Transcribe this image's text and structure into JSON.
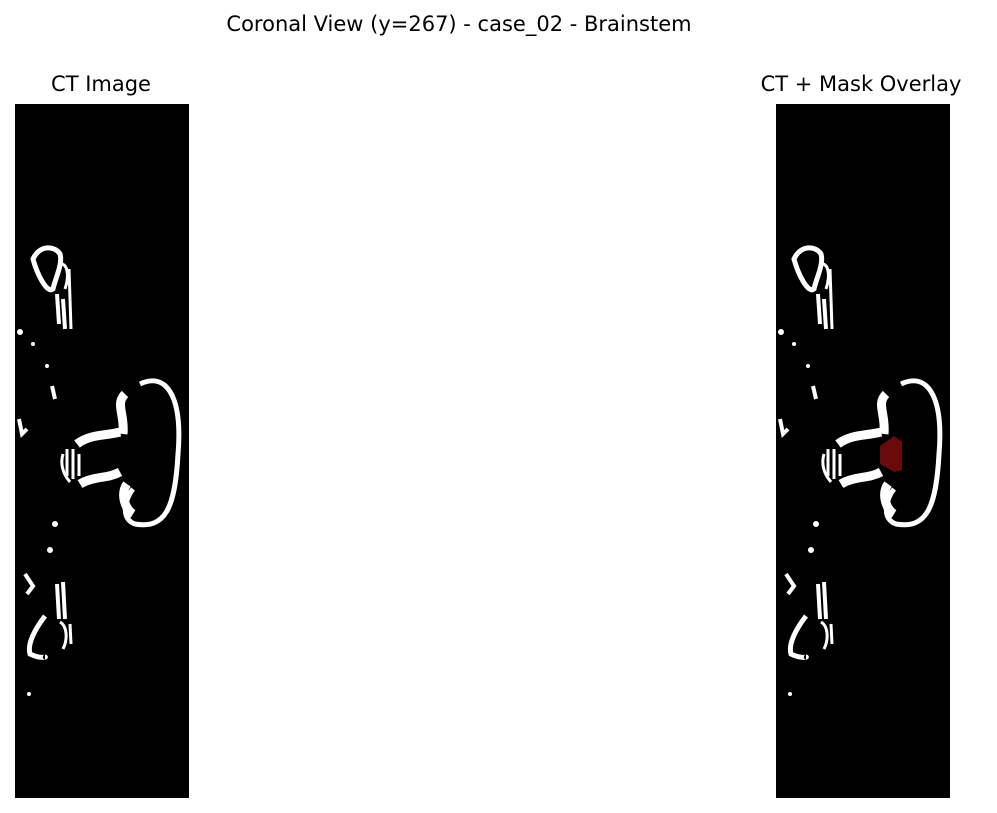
{
  "figure": {
    "suptitle": "Coronal View (y=267) - case_02 - Brainstem",
    "panels": [
      {
        "title": "CT Image"
      },
      {
        "title": "CT + Mask Overlay"
      }
    ]
  },
  "colors": {
    "background": "#000000",
    "bone": "#ffffff",
    "mask": "#6b0a0a"
  }
}
